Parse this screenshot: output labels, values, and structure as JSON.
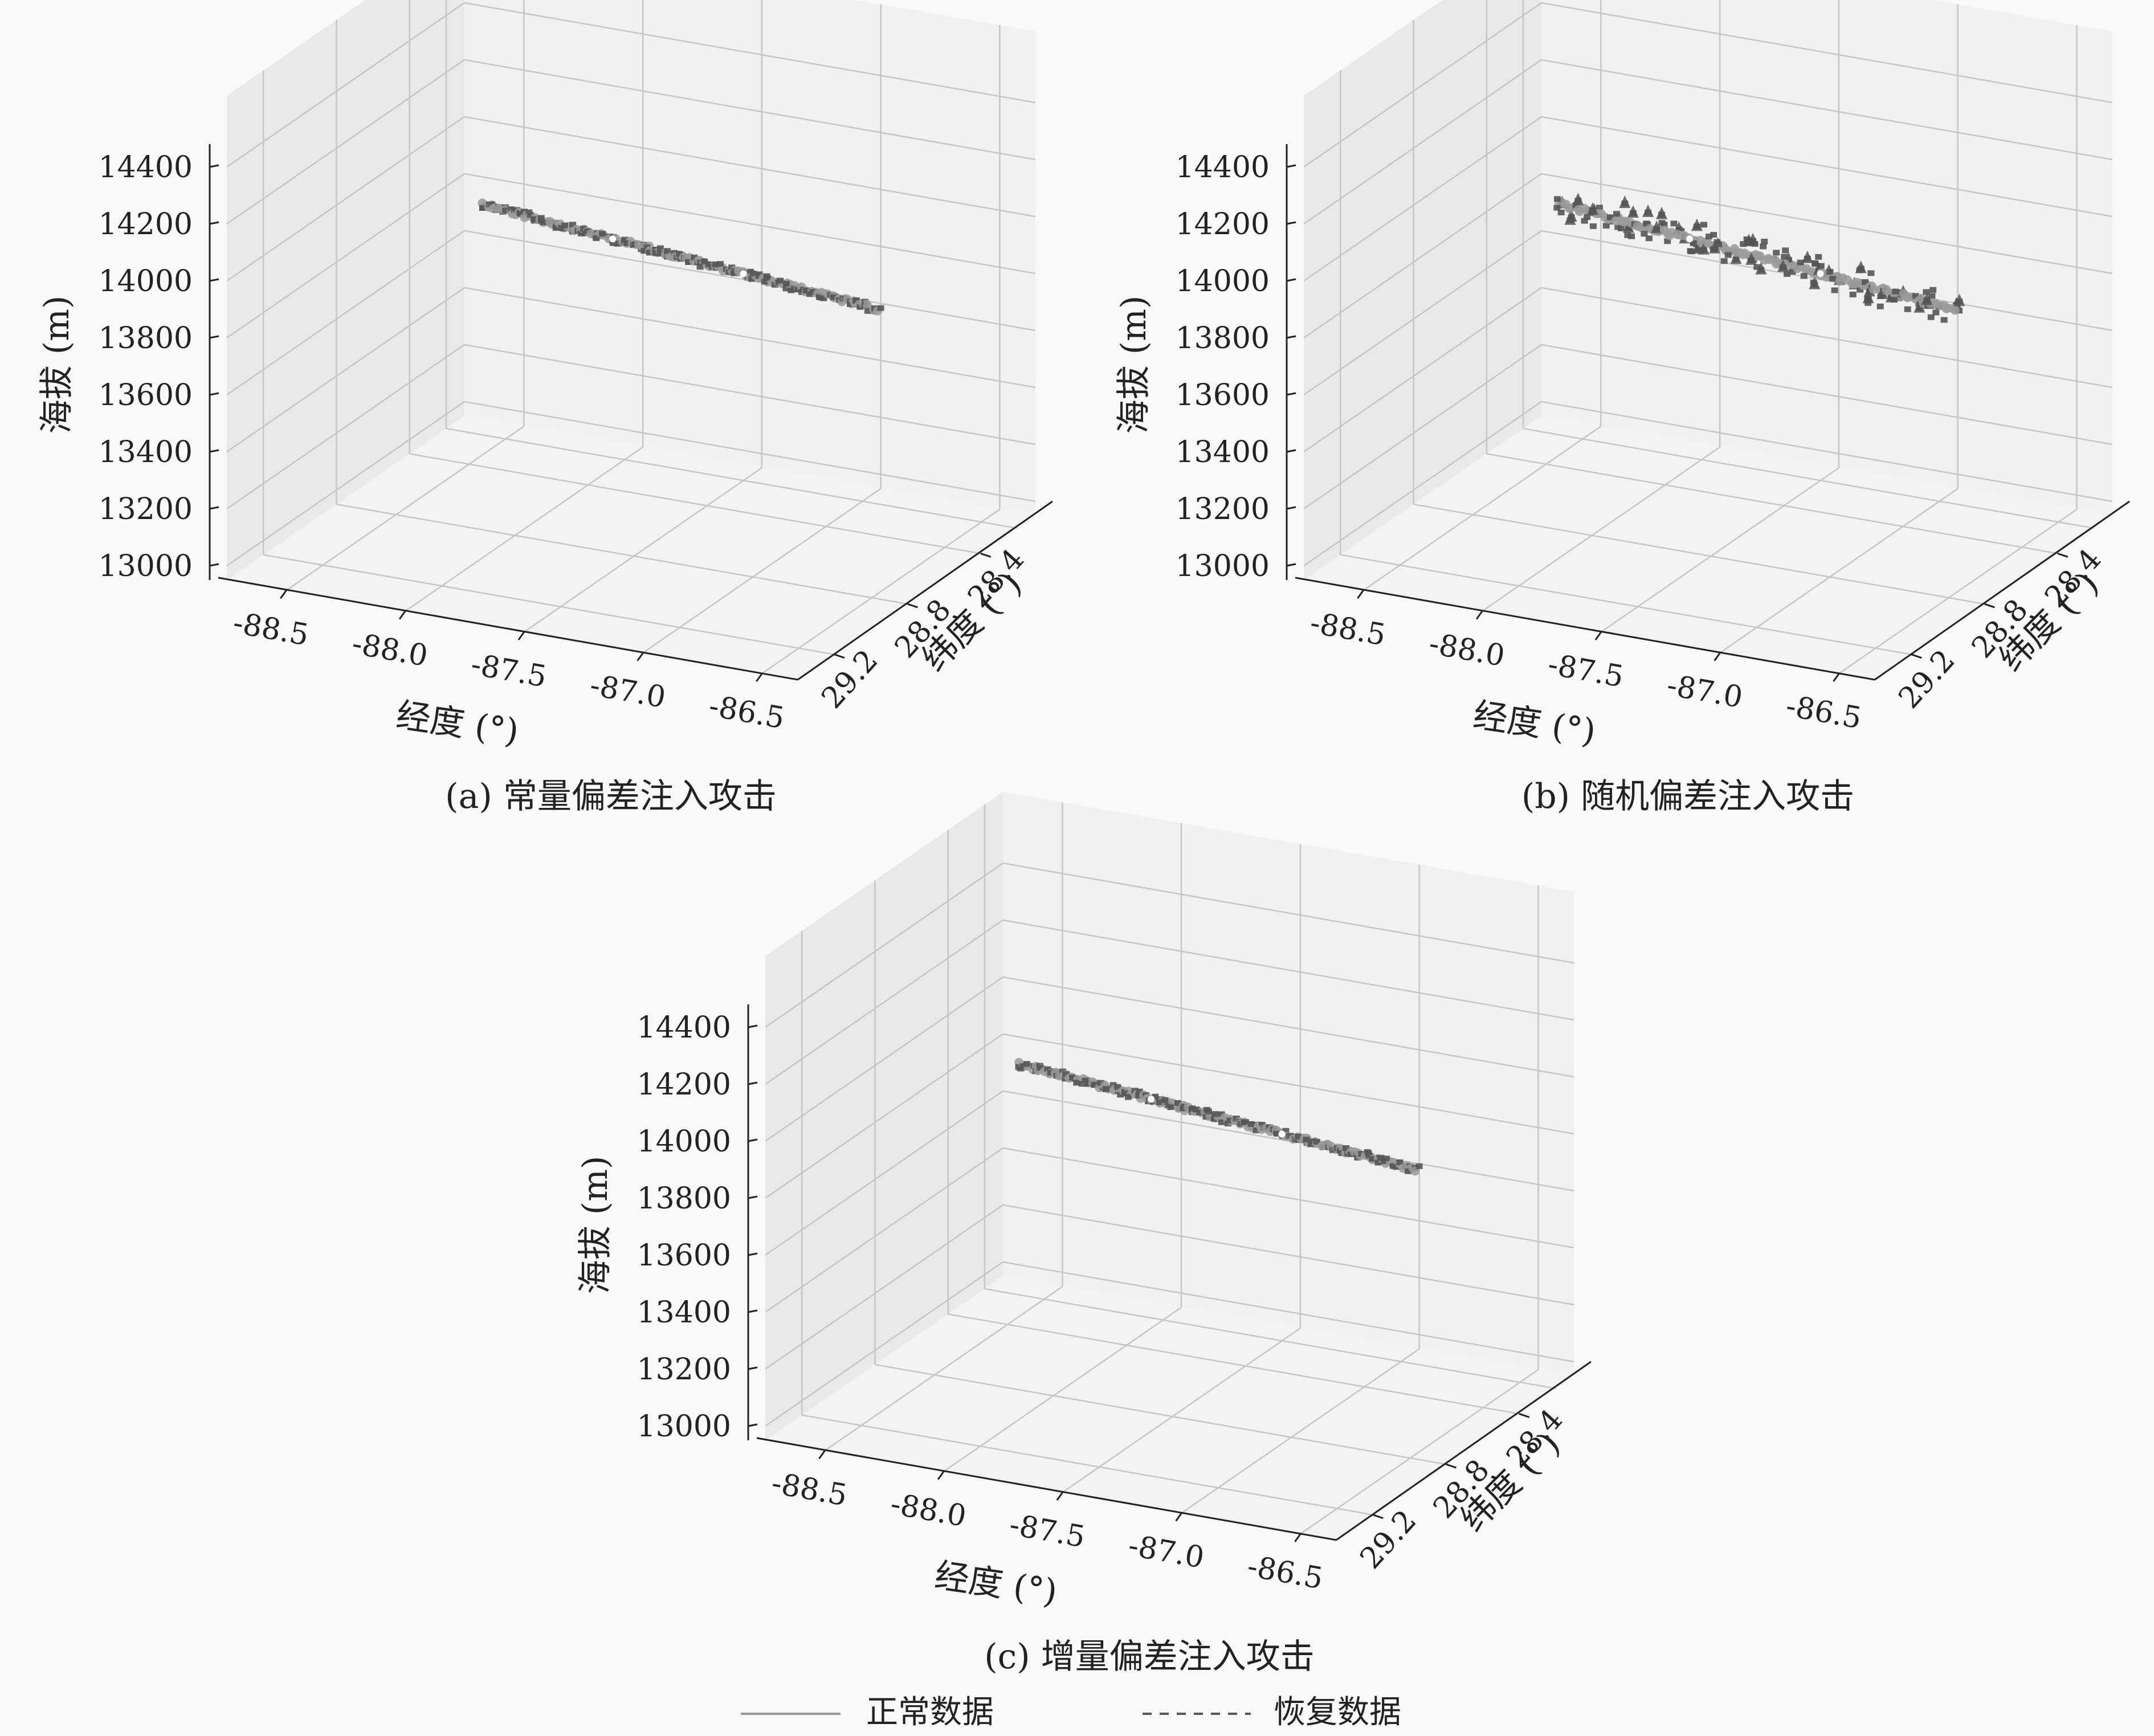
{
  "chart_data": [
    {
      "id": "a",
      "type": "scatter",
      "caption": "(a) 常量偏差注入攻击",
      "xlabel": "经度 (°)",
      "ylabel": "纬度 (°)",
      "zlabel": "海拔 (m)",
      "x_ticks": [
        "-88.5",
        "-88.0",
        "-87.5",
        "-87.0",
        "-86.5"
      ],
      "y_ticks": [
        "29.2",
        "28.8",
        "28.4"
      ],
      "z_ticks": [
        "13000",
        "13200",
        "13400",
        "13600",
        "13800",
        "14000",
        "14200",
        "14400"
      ],
      "grid": true,
      "noise": "small",
      "series": [
        {
          "name": "正常数据",
          "x": [
            -88.6,
            -86.55
          ],
          "y": [
            28.2,
            28.7
          ],
          "z": [
            13760,
            13910
          ]
        },
        {
          "name": "恢复数据",
          "x": [
            -88.6,
            -86.55
          ],
          "y": [
            28.2,
            28.7
          ],
          "z": [
            13760,
            13910
          ]
        }
      ]
    },
    {
      "id": "b",
      "type": "scatter",
      "caption": "(b) 随机偏差注入攻击",
      "xlabel": "经度 (°)",
      "ylabel": "纬度 (°)",
      "zlabel": "海拔 (m)",
      "x_ticks": [
        "-88.5",
        "-88.0",
        "-87.5",
        "-87.0",
        "-86.5"
      ],
      "y_ticks": [
        "29.2",
        "28.8",
        "28.4"
      ],
      "z_ticks": [
        "13000",
        "13200",
        "13400",
        "13600",
        "13800",
        "14000",
        "14200",
        "14400"
      ],
      "grid": true,
      "noise": "large",
      "series": [
        {
          "name": "正常数据",
          "x": [
            -88.6,
            -86.55
          ],
          "y": [
            28.2,
            28.7
          ],
          "z": [
            13760,
            13910
          ]
        },
        {
          "name": "恢复数据",
          "x": [
            -88.6,
            -86.55
          ],
          "y": [
            28.2,
            28.7
          ],
          "z": [
            13760,
            13910
          ]
        }
      ]
    },
    {
      "id": "c",
      "type": "scatter",
      "caption": "(c) 增量偏差注入攻击",
      "xlabel": "经度 (°)",
      "ylabel": "纬度 (°)",
      "zlabel": "海拔 (m)",
      "x_ticks": [
        "-88.5",
        "-88.0",
        "-87.5",
        "-87.0",
        "-86.5"
      ],
      "y_ticks": [
        "29.2",
        "28.8",
        "28.4"
      ],
      "z_ticks": [
        "13000",
        "13200",
        "13400",
        "13600",
        "13800",
        "14000",
        "14200",
        "14400"
      ],
      "grid": true,
      "noise": "small",
      "series": [
        {
          "name": "正常数据",
          "x": [
            -88.6,
            -86.55
          ],
          "y": [
            28.2,
            28.7
          ],
          "z": [
            13760,
            13910
          ]
        },
        {
          "name": "恢复数据",
          "x": [
            -88.6,
            -86.55
          ],
          "y": [
            28.2,
            28.7
          ],
          "z": [
            13760,
            13910
          ]
        }
      ]
    }
  ],
  "legend": {
    "position": "bottom-center",
    "items": [
      {
        "label": "正常数据",
        "style": "solid",
        "color": "#9a9a9a"
      },
      {
        "label": "恢复数据",
        "style": "dashed",
        "color": "#555555"
      }
    ]
  },
  "colors": {
    "pane": "#e9e9e9",
    "grid": "#c6c6c6",
    "axis": "#222222",
    "normal": "#9a9a9a",
    "recovered": "#555555"
  }
}
